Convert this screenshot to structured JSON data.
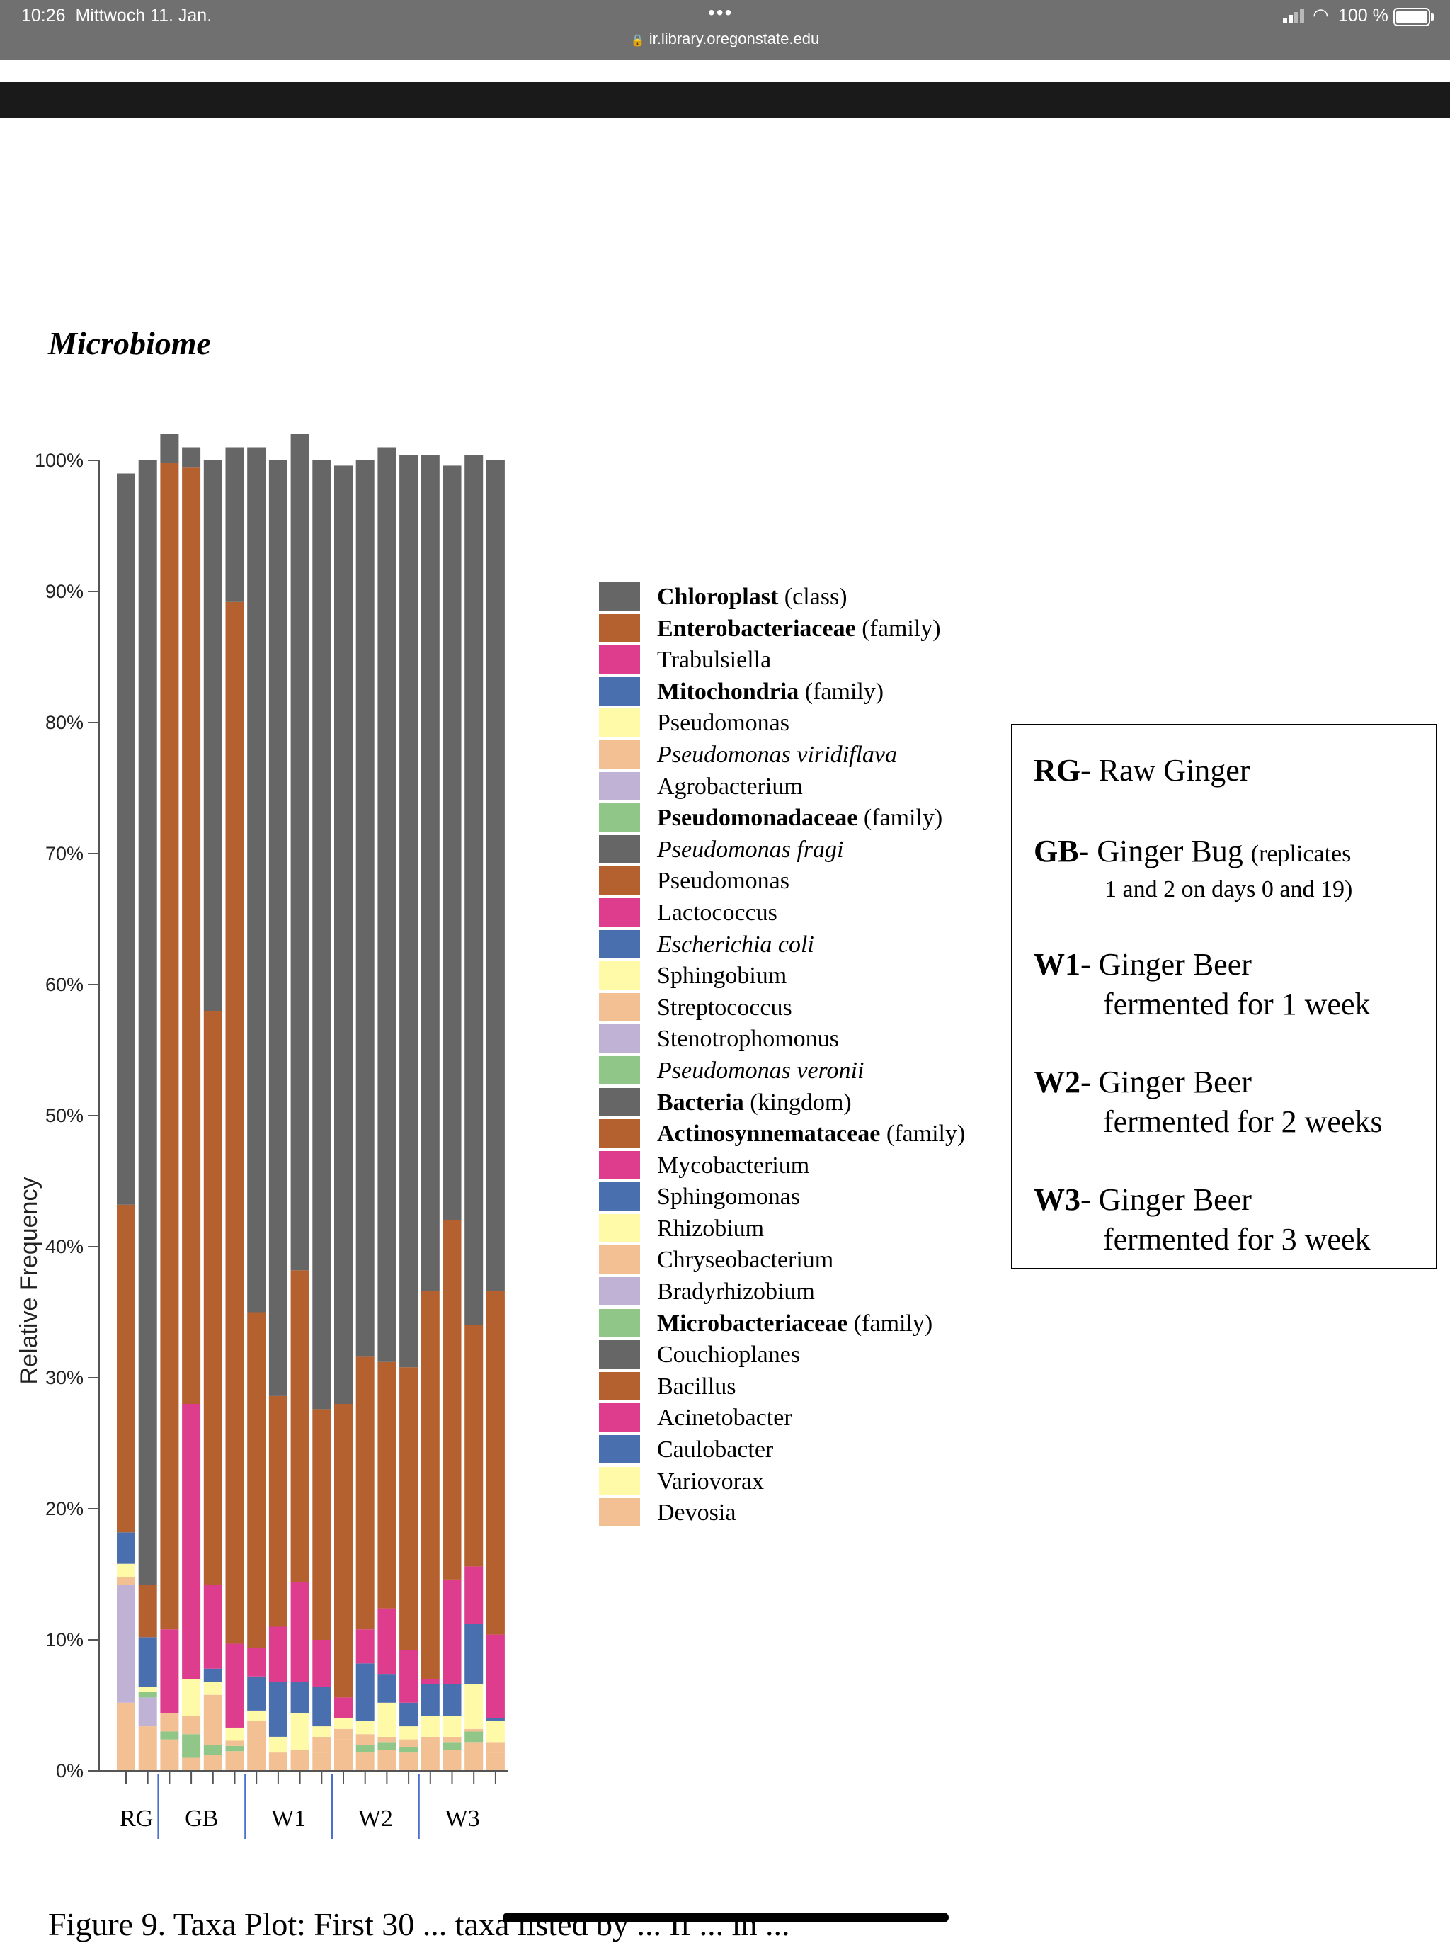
{
  "status_bar": {
    "time": "10:26",
    "date": "Mittwoch 11. Jan.",
    "dots": "•••",
    "url": "ir.library.oregonstate.edu",
    "battery": "100 %"
  },
  "heading": "Microbiome",
  "caption": "Figure 9. Taxa Plot: First 30 ... taxa listed by ... If ... in ...",
  "palette": [
    "#666666",
    "#b5602f",
    "#dd3d8c",
    "#4a6fae",
    "#fefaa8",
    "#f2c092",
    "#bfb2d5",
    "#90c789"
  ],
  "chart_data": {
    "type": "bar",
    "stacked": true,
    "title": "",
    "ylabel": "Relative Frequency",
    "xlabel": "",
    "ylim": [
      0,
      100
    ],
    "yticks": [
      "0%",
      "10%",
      "20%",
      "30%",
      "40%",
      "50%",
      "60%",
      "70%",
      "80%",
      "90%",
      "100%"
    ],
    "group_labels": [
      "RG",
      "GB",
      "W1",
      "W2",
      "W3"
    ],
    "group_bar_counts": [
      2,
      4,
      4,
      4,
      4
    ],
    "bars_in_chart": 18,
    "series_note": "values are approximate percent per bar, bottom to top, stacked in listed order",
    "series": [
      {
        "name": "Devosia (+ minor taxa)",
        "values": [
          5.2,
          3.4,
          2.4,
          1.0,
          1.2,
          1.5,
          3.0,
          1.0,
          1.2,
          1.4,
          2.4,
          1.4,
          1.6,
          1.4,
          2.0,
          1.6,
          2.2,
          1.4
        ]
      },
      {
        "name": "Agrobacterium",
        "values": [
          9.0,
          2.2,
          0.0,
          0.0,
          0.0,
          0.0,
          0.0,
          0.0,
          0.0,
          0.0,
          0.0,
          0.0,
          0.0,
          0.0,
          0.0,
          0.0,
          0.0,
          0.0
        ]
      },
      {
        "name": "Pseudomonadaceae (family)",
        "values": [
          0.0,
          0.4,
          0.6,
          1.8,
          0.8,
          0.4,
          0.0,
          0.0,
          0.0,
          0.0,
          0.0,
          0.6,
          0.6,
          0.4,
          0.0,
          0.6,
          0.8,
          0.0
        ]
      },
      {
        "name": "Pseudomonas viridiflava",
        "values": [
          0.6,
          0.0,
          1.4,
          1.4,
          3.8,
          0.4,
          0.8,
          0.4,
          0.4,
          1.2,
          0.8,
          0.8,
          0.4,
          0.6,
          0.6,
          0.4,
          0.2,
          0.8
        ]
      },
      {
        "name": "Pseudomonas",
        "values": [
          1.0,
          0.4,
          0.0,
          2.8,
          1.0,
          1.0,
          0.8,
          1.2,
          2.8,
          0.8,
          0.8,
          1.0,
          2.6,
          1.0,
          1.6,
          1.6,
          3.4,
          1.6
        ]
      },
      {
        "name": "Mitochondria (family)",
        "values": [
          2.4,
          3.8,
          0.0,
          0.0,
          1.0,
          0.0,
          2.6,
          4.2,
          2.4,
          3.0,
          0.0,
          4.4,
          2.2,
          1.8,
          2.4,
          2.4,
          4.6,
          0.2
        ]
      },
      {
        "name": "Trabulsiella",
        "values": [
          0.0,
          0.0,
          6.4,
          21.0,
          6.4,
          6.4,
          2.2,
          4.2,
          7.6,
          3.6,
          1.6,
          2.6,
          5.0,
          4.0,
          0.4,
          8.0,
          4.4,
          6.4
        ]
      },
      {
        "name": "Enterobacteriaceae (family)",
        "values": [
          25.0,
          4.0,
          89.0,
          71.5,
          43.8,
          79.5,
          25.6,
          17.6,
          23.8,
          17.6,
          22.4,
          20.8,
          18.8,
          21.6,
          29.6,
          27.4,
          18.4,
          26.2
        ]
      },
      {
        "name": "Chloroplast (class)",
        "values": [
          55.8,
          85.8,
          2.2,
          1.5,
          42.0,
          11.8,
          66.0,
          71.4,
          63.8,
          72.4,
          71.6,
          68.4,
          69.8,
          69.6,
          63.8,
          57.6,
          66.4,
          63.4
        ]
      }
    ]
  },
  "legend": [
    {
      "bold": "Chloroplast",
      "rest": " (class)",
      "italic": false
    },
    {
      "bold": "Enterobacteriaceae",
      "rest": " (family)",
      "italic": false
    },
    {
      "bold": "",
      "rest": "Trabulsiella",
      "italic": false
    },
    {
      "bold": "Mitochondria",
      "rest": " (family)",
      "italic": false
    },
    {
      "bold": "",
      "rest": "Pseudomonas",
      "italic": false
    },
    {
      "bold": "",
      "rest": "Pseudomonas viridiflava",
      "italic": true
    },
    {
      "bold": "",
      "rest": "Agrobacterium",
      "italic": false
    },
    {
      "bold": "Pseudomonadaceae",
      "rest": " (family)",
      "italic": false
    },
    {
      "bold": "",
      "rest": "Pseudomonas fragi",
      "italic": true
    },
    {
      "bold": "",
      "rest": "Pseudomonas",
      "italic": false
    },
    {
      "bold": "",
      "rest": "Lactococcus",
      "italic": false
    },
    {
      "bold": "",
      "rest": "Escherichia coli",
      "italic": true
    },
    {
      "bold": "",
      "rest": "Sphingobium",
      "italic": false
    },
    {
      "bold": "",
      "rest": "Streptococcus",
      "italic": false
    },
    {
      "bold": "",
      "rest": "Stenotrophomonus",
      "italic": false
    },
    {
      "bold": "",
      "rest": "Pseudomonas veronii",
      "italic": true
    },
    {
      "bold": "Bacteria",
      "rest": " (kingdom)",
      "italic": false
    },
    {
      "bold": "Actinosynnemataceae",
      "rest": " (family)",
      "italic": false
    },
    {
      "bold": "",
      "rest": "Mycobacterium",
      "italic": false
    },
    {
      "bold": "",
      "rest": "Sphingomonas",
      "italic": false
    },
    {
      "bold": "",
      "rest": "Rhizobium",
      "italic": false
    },
    {
      "bold": "",
      "rest": "Chryseobacterium",
      "italic": false
    },
    {
      "bold": "",
      "rest": "Bradyrhizobium",
      "italic": false
    },
    {
      "bold": "Microbacteriaceae",
      "rest": " (family)",
      "italic": false
    },
    {
      "bold": "",
      "rest": "Couchioplanes",
      "italic": false
    },
    {
      "bold": "",
      "rest": "Bacillus",
      "italic": false
    },
    {
      "bold": "",
      "rest": "Acinetobacter",
      "italic": false
    },
    {
      "bold": "",
      "rest": "Caulobacter",
      "italic": false
    },
    {
      "bold": "",
      "rest": "Variovorax",
      "italic": false
    },
    {
      "bold": "",
      "rest": "Devosia",
      "italic": false
    }
  ],
  "info_box": [
    {
      "code": "RG",
      "line1": "- Raw Ginger",
      "small": "",
      "line2": ""
    },
    {
      "code": "GB",
      "line1": "- Ginger Bug ",
      "small": "(replicates",
      "line2": "1 and 2 on days 0 and 19)"
    },
    {
      "code": "W1",
      "line1": "- Ginger Beer",
      "small": "",
      "line2": "fermented for 1 week"
    },
    {
      "code": "W2",
      "line1": "- Ginger Beer",
      "small": "",
      "line2": "fermented for 2 weeks"
    },
    {
      "code": "W3",
      "line1": "- Ginger Beer",
      "small": "",
      "line2": "fermented for 3 week"
    }
  ]
}
